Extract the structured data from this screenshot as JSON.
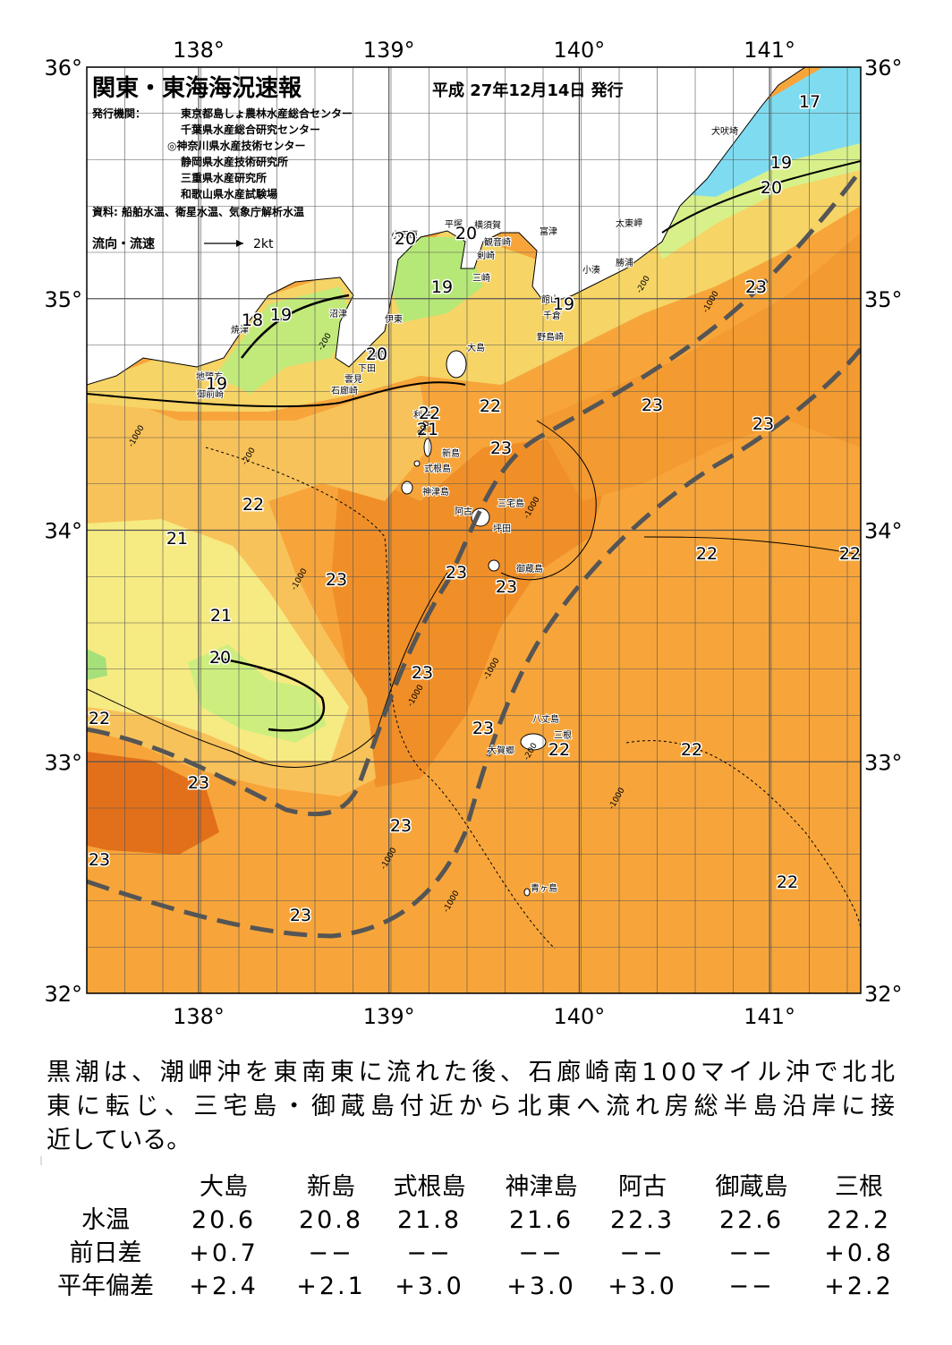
{
  "header": {
    "title": "関東・東海海況速報",
    "date": "平成 27年12月14日 発行"
  },
  "publishers": {
    "label": "発行機関：",
    "agencies": [
      "東京都島しょ農林水産総合センター",
      "千葉県水産総合研究センター",
      "◎神奈川県水産技術センター",
      "静岡県水産技術研究所",
      "三重県水産研究所",
      "和歌山県水産試験場"
    ]
  },
  "source": "資料: 船舶水温、衛星水温、気象庁解析水温",
  "legend": {
    "label": "流向・流速",
    "scale": "2kt"
  },
  "map": {
    "lon_ticks": [
      {
        "value": 138,
        "label": "138°"
      },
      {
        "value": 139,
        "label": "139°"
      },
      {
        "value": 140,
        "label": "140°"
      },
      {
        "value": 141,
        "label": "141°"
      }
    ],
    "lat_ticks": [
      {
        "value": 36,
        "label": "36°"
      },
      {
        "value": 35,
        "label": "35°"
      },
      {
        "value": 34,
        "label": "34°"
      },
      {
        "value": 33,
        "label": "33°"
      },
      {
        "value": 32,
        "label": "32°"
      }
    ],
    "place_names": [
      "犬吠埼",
      "太東岬",
      "勝浦",
      "小湊",
      "館山",
      "千倉",
      "野島崎",
      "富津",
      "平塚",
      "横須賀",
      "観音崎",
      "剣崎",
      "三崎",
      "小田原",
      "伊東",
      "沼津",
      "焼津",
      "地頭方",
      "御前崎",
      "稲取",
      "下田",
      "雲見",
      "石廊崎",
      "大島",
      "利島",
      "新島",
      "式根島",
      "神津島",
      "三宅島",
      "阿古",
      "坪田",
      "御蔵島",
      "八丈島",
      "三根",
      "大賀郷",
      "青ヶ島"
    ],
    "temperature_labels": [
      17,
      19,
      20,
      20,
      20,
      19,
      19,
      18,
      19,
      20,
      19,
      22,
      22,
      21,
      23,
      23,
      23,
      23,
      22,
      21,
      22,
      22,
      23,
      23,
      23,
      21,
      20,
      23,
      22,
      23,
      22,
      22,
      23,
      23,
      23,
      22,
      23
    ],
    "depth_labels": [
      "-200",
      "-200",
      "-1000",
      "-200",
      "-1000",
      "-200",
      "-1000",
      "-1000",
      "-1000",
      "-1000",
      "-1000",
      "-1000",
      "-200",
      "-1000"
    ]
  },
  "summary": [
    "黒潮は、潮岬沖を東南東に流れた後、石廊崎南100マイル沖で北北",
    "東に転じ、三宅島・御蔵島付近から北東へ流れ房総半島沿岸に接",
    "近している。"
  ],
  "table": {
    "columns": [
      "大島",
      "新島",
      "式根島",
      "神津島",
      "阿古",
      "御蔵島",
      "三根"
    ],
    "rows": [
      {
        "label": "水温",
        "cells": [
          "20.6",
          "20.8",
          "21.8",
          "21.6",
          "22.3",
          "22.6",
          "22.2"
        ]
      },
      {
        "label": "前日差",
        "cells": [
          "+0.7",
          "−−",
          "−−",
          "−−",
          "−−",
          "−−",
          "+0.8"
        ]
      },
      {
        "label": "平年偏差",
        "cells": [
          "+2.4",
          "+2.1",
          "+3.0",
          "+3.0",
          "+3.0",
          "−−",
          "+2.2"
        ]
      }
    ]
  }
}
